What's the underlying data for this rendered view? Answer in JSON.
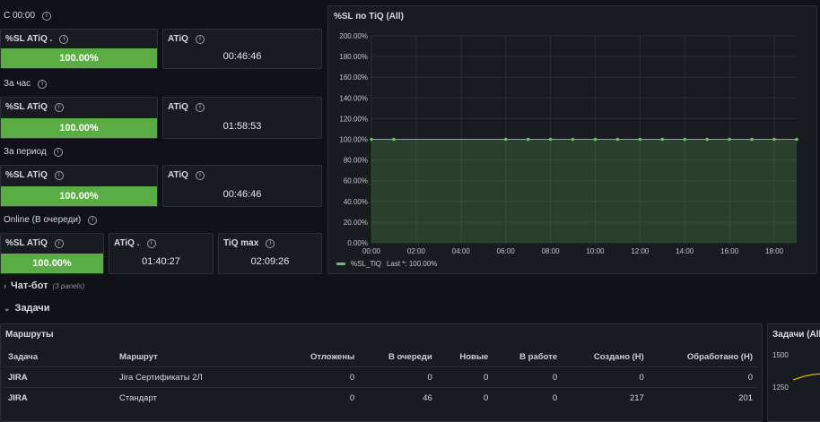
{
  "rows": [
    {
      "title": "С 00:00"
    },
    {
      "title": "За час"
    },
    {
      "title": "За период"
    },
    {
      "title": "Online (В очереди)"
    }
  ],
  "stats": [
    {
      "sl_title": "%SL ATiQ .",
      "sl_value": "100.00%",
      "sl_level": 1.0,
      "t_title": "ATiQ",
      "t_value": "00:46:46"
    },
    {
      "sl_title": "%SL ATiQ",
      "sl_value": "100.00%",
      "sl_level": 1.0,
      "t_title": "ATiQ",
      "t_value": "01:58:53"
    },
    {
      "sl_title": "%SL ATiQ",
      "sl_value": "100.00%",
      "sl_level": 1.0,
      "t_title": "ATiQ",
      "t_value": "00:46:46"
    }
  ],
  "online": {
    "sl_title": "%SL ATiQ",
    "sl_value": "100.00%",
    "sl_level": 1.0,
    "t_title": "ATiQ .",
    "t_value": "01:40:27",
    "max_title": "TiQ max",
    "max_value": "02:09:26"
  },
  "chart_panel": {
    "title": "%SL по TiQ (All)"
  },
  "chart_data": {
    "type": "area",
    "title": "%SL по TiQ (All)",
    "ytick_labels": [
      "0.00%",
      "20.00%",
      "40.00%",
      "60.00%",
      "80.00%",
      "100.00%",
      "120.00%",
      "140.00%",
      "160.00%",
      "180.00%",
      "200.00%"
    ],
    "xtick_labels": [
      "00:00",
      "02:00",
      "04:00",
      "06:00",
      "08:00",
      "10:00",
      "12:00",
      "14:00",
      "16:00",
      "18:00"
    ],
    "ylim": [
      0,
      200
    ],
    "xlim_hours": [
      0,
      19
    ],
    "series": [
      {
        "name": "%SL_TiQ",
        "color": "#73bf69",
        "x_hours": [
          0,
          1,
          6,
          7,
          8,
          9,
          10,
          11,
          12,
          13,
          14,
          15,
          16,
          17,
          18,
          19
        ],
        "values": [
          100,
          100,
          100,
          100,
          100,
          100,
          100,
          100,
          100,
          100,
          100,
          100,
          100,
          100,
          100,
          100
        ]
      }
    ],
    "legend": {
      "label": "%SL_TiQ",
      "stat": "Last *: 100.00%",
      "placement": "bottom-left"
    },
    "grid": true
  },
  "sections": {
    "chatbot": {
      "title": "Чат-бот",
      "note": "(3 panels)"
    },
    "tasks": {
      "title": "Задачи"
    }
  },
  "routes": {
    "title": "Маршруты",
    "columns": [
      "Задача",
      "Маршрут",
      "Отложены",
      "В очереди",
      "Новые",
      "В работе",
      "Создано (Н)",
      "Обработано (Н)"
    ],
    "rows": [
      [
        "JIRA",
        "Jira Сертификаты 2Л",
        "0",
        "0",
        "0",
        "0",
        "0",
        "0"
      ],
      [
        "JIRA",
        "Стандарт",
        "0",
        "46",
        "0",
        "0",
        "217",
        "201"
      ]
    ]
  },
  "tasks_panel": {
    "title": "Задачи (All)",
    "yticks": [
      "1500",
      "1250"
    ]
  },
  "colors": {
    "ok": "#5aac44",
    "line": "#73bf69",
    "background": "#111217",
    "panel": "#181b1f"
  }
}
